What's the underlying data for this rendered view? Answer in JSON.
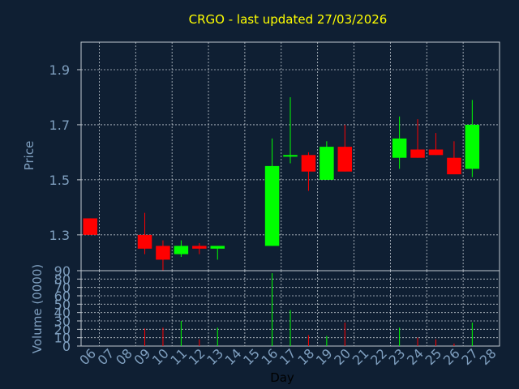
{
  "colors": {
    "background": "#0f1f33",
    "frame": "#c0c8d0",
    "grid": "#c0c8d0",
    "title": "#ffff00",
    "axis_text": "#7f9fbf",
    "label_text": "#000000",
    "up": "#00ff00",
    "down": "#ff0000"
  },
  "chart_data": [
    {
      "type": "candlestick",
      "title": "CRGO - last updated 27/03/2026",
      "ylabel": "Price",
      "xlabel": "Day",
      "ylim": [
        1.17,
        2.0
      ],
      "yticks": [
        1.3,
        1.5,
        1.7,
        1.9
      ],
      "ytick_labels": [
        "1.3",
        "1.5",
        "1.7",
        "1.9"
      ],
      "grid": true,
      "x": [
        "06",
        "07",
        "08",
        "09",
        "10",
        "11",
        "12",
        "13",
        "14",
        "15",
        "16",
        "17",
        "18",
        "19",
        "20",
        "21",
        "22",
        "23",
        "24",
        "25",
        "26",
        "27",
        "28"
      ],
      "candles": [
        {
          "day": "06",
          "open": 1.36,
          "high": 1.36,
          "low": 1.3,
          "close": 1.3
        },
        {
          "day": "09",
          "open": 1.3,
          "high": 1.38,
          "low": 1.23,
          "close": 1.25
        },
        {
          "day": "10",
          "open": 1.26,
          "high": 1.28,
          "low": 1.17,
          "close": 1.21
        },
        {
          "day": "11",
          "open": 1.23,
          "high": 1.28,
          "low": 1.22,
          "close": 1.26
        },
        {
          "day": "12",
          "open": 1.26,
          "high": 1.27,
          "low": 1.23,
          "close": 1.25
        },
        {
          "day": "13",
          "open": 1.25,
          "high": 1.26,
          "low": 1.21,
          "close": 1.26
        },
        {
          "day": "16",
          "open": 1.26,
          "high": 1.65,
          "low": 1.26,
          "close": 1.55
        },
        {
          "day": "17",
          "open": 1.59,
          "high": 1.8,
          "low": 1.56,
          "close": 1.59
        },
        {
          "day": "18",
          "open": 1.59,
          "high": 1.6,
          "low": 1.46,
          "close": 1.53
        },
        {
          "day": "19",
          "open": 1.5,
          "high": 1.64,
          "low": 1.5,
          "close": 1.62
        },
        {
          "day": "20",
          "open": 1.62,
          "high": 1.7,
          "low": 1.53,
          "close": 1.53
        },
        {
          "day": "23",
          "open": 1.58,
          "high": 1.73,
          "low": 1.54,
          "close": 1.65
        },
        {
          "day": "24",
          "open": 1.61,
          "high": 1.72,
          "low": 1.58,
          "close": 1.58
        },
        {
          "day": "25",
          "open": 1.61,
          "high": 1.67,
          "low": 1.59,
          "close": 1.59
        },
        {
          "day": "26",
          "open": 1.58,
          "high": 1.64,
          "low": 1.52,
          "close": 1.52
        },
        {
          "day": "27",
          "open": 1.54,
          "high": 1.79,
          "low": 1.51,
          "close": 1.7
        }
      ]
    },
    {
      "type": "bar",
      "ylabel": "Volume (0000)",
      "xlabel": "Day",
      "ylim": [
        0,
        90
      ],
      "yticks": [
        0,
        10,
        20,
        30,
        40,
        50,
        60,
        70,
        80,
        90
      ],
      "ytick_labels": [
        "0",
        "10",
        "20",
        "30",
        "40",
        "50",
        "60",
        "70",
        "80",
        "90"
      ],
      "xtick_labels": [
        "06",
        "07",
        "08",
        "09",
        "10",
        "11",
        "12",
        "13",
        "14",
        "15",
        "16",
        "17",
        "18",
        "19",
        "20",
        "21",
        "22",
        "23",
        "24",
        "25",
        "26",
        "27",
        "28"
      ],
      "grid": true,
      "bars": [
        {
          "day": "06",
          "volume": 0,
          "direction": "down"
        },
        {
          "day": "09",
          "volume": 21,
          "direction": "down"
        },
        {
          "day": "10",
          "volume": 22,
          "direction": "down"
        },
        {
          "day": "11",
          "volume": 30,
          "direction": "up"
        },
        {
          "day": "12",
          "volume": 8,
          "direction": "down"
        },
        {
          "day": "13",
          "volume": 22,
          "direction": "up"
        },
        {
          "day": "16",
          "volume": 87,
          "direction": "up"
        },
        {
          "day": "17",
          "volume": 43,
          "direction": "up"
        },
        {
          "day": "18",
          "volume": 13,
          "direction": "down"
        },
        {
          "day": "19",
          "volume": 12,
          "direction": "up"
        },
        {
          "day": "20",
          "volume": 28,
          "direction": "down"
        },
        {
          "day": "23",
          "volume": 22,
          "direction": "up"
        },
        {
          "day": "24",
          "volume": 10,
          "direction": "down"
        },
        {
          "day": "25",
          "volume": 8,
          "direction": "down"
        },
        {
          "day": "26",
          "volume": 3,
          "direction": "down"
        },
        {
          "day": "27",
          "volume": 28,
          "direction": "up"
        }
      ]
    }
  ]
}
